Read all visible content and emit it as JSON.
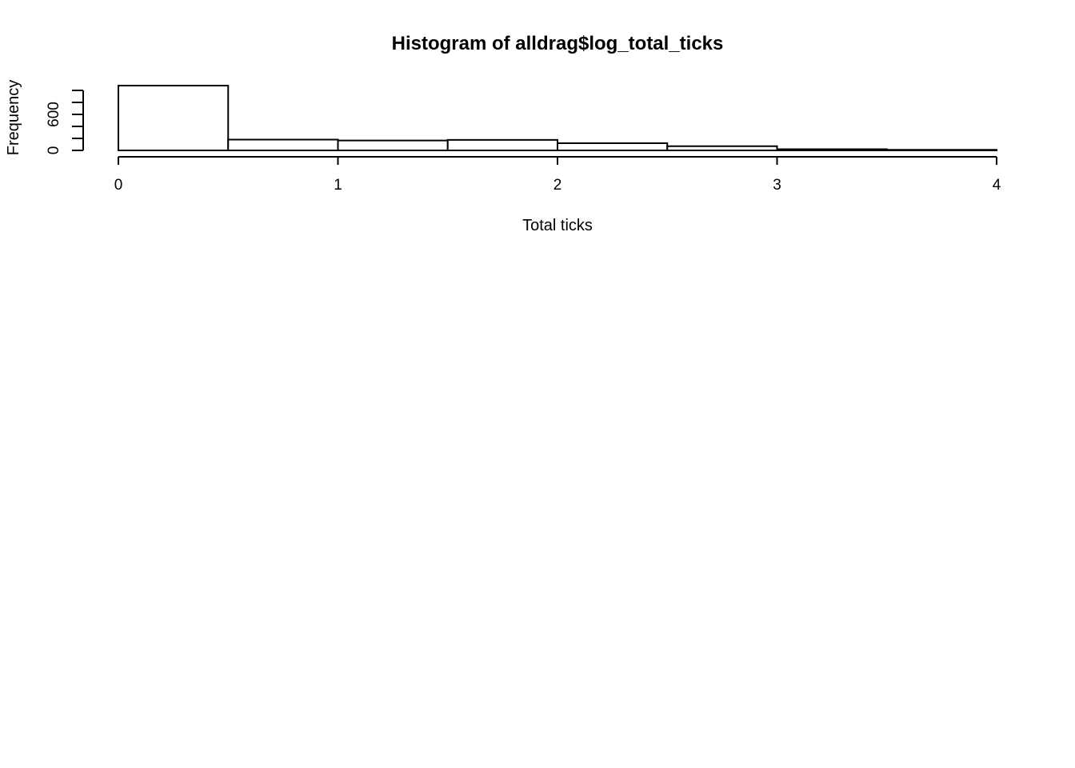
{
  "chart_data": {
    "type": "bar",
    "title": "Histogram of alldrag$log_total_ticks",
    "xlabel": "Total ticks",
    "ylabel": "Frequency",
    "bins": [
      {
        "start": 0.0,
        "end": 0.5,
        "count": 1080
      },
      {
        "start": 0.5,
        "end": 1.0,
        "count": 180
      },
      {
        "start": 1.0,
        "end": 1.5,
        "count": 165
      },
      {
        "start": 1.5,
        "end": 2.0,
        "count": 175
      },
      {
        "start": 2.0,
        "end": 2.5,
        "count": 120
      },
      {
        "start": 2.5,
        "end": 3.0,
        "count": 70
      },
      {
        "start": 3.0,
        "end": 3.5,
        "count": 20
      },
      {
        "start": 3.5,
        "end": 4.0,
        "count": 10
      }
    ],
    "xlim": [
      0,
      4
    ],
    "ylim": [
      0,
      1080
    ],
    "xticks": [
      0,
      1,
      2,
      3,
      4
    ],
    "yticks": [
      0,
      200,
      400,
      600,
      800,
      1000
    ],
    "ytick_labels": [
      {
        "value": 0,
        "label": "0"
      },
      {
        "value": 600,
        "label": "600"
      }
    ],
    "grid": false,
    "colors": {
      "bar_fill": "#ffffff",
      "bar_stroke": "#000000"
    }
  }
}
